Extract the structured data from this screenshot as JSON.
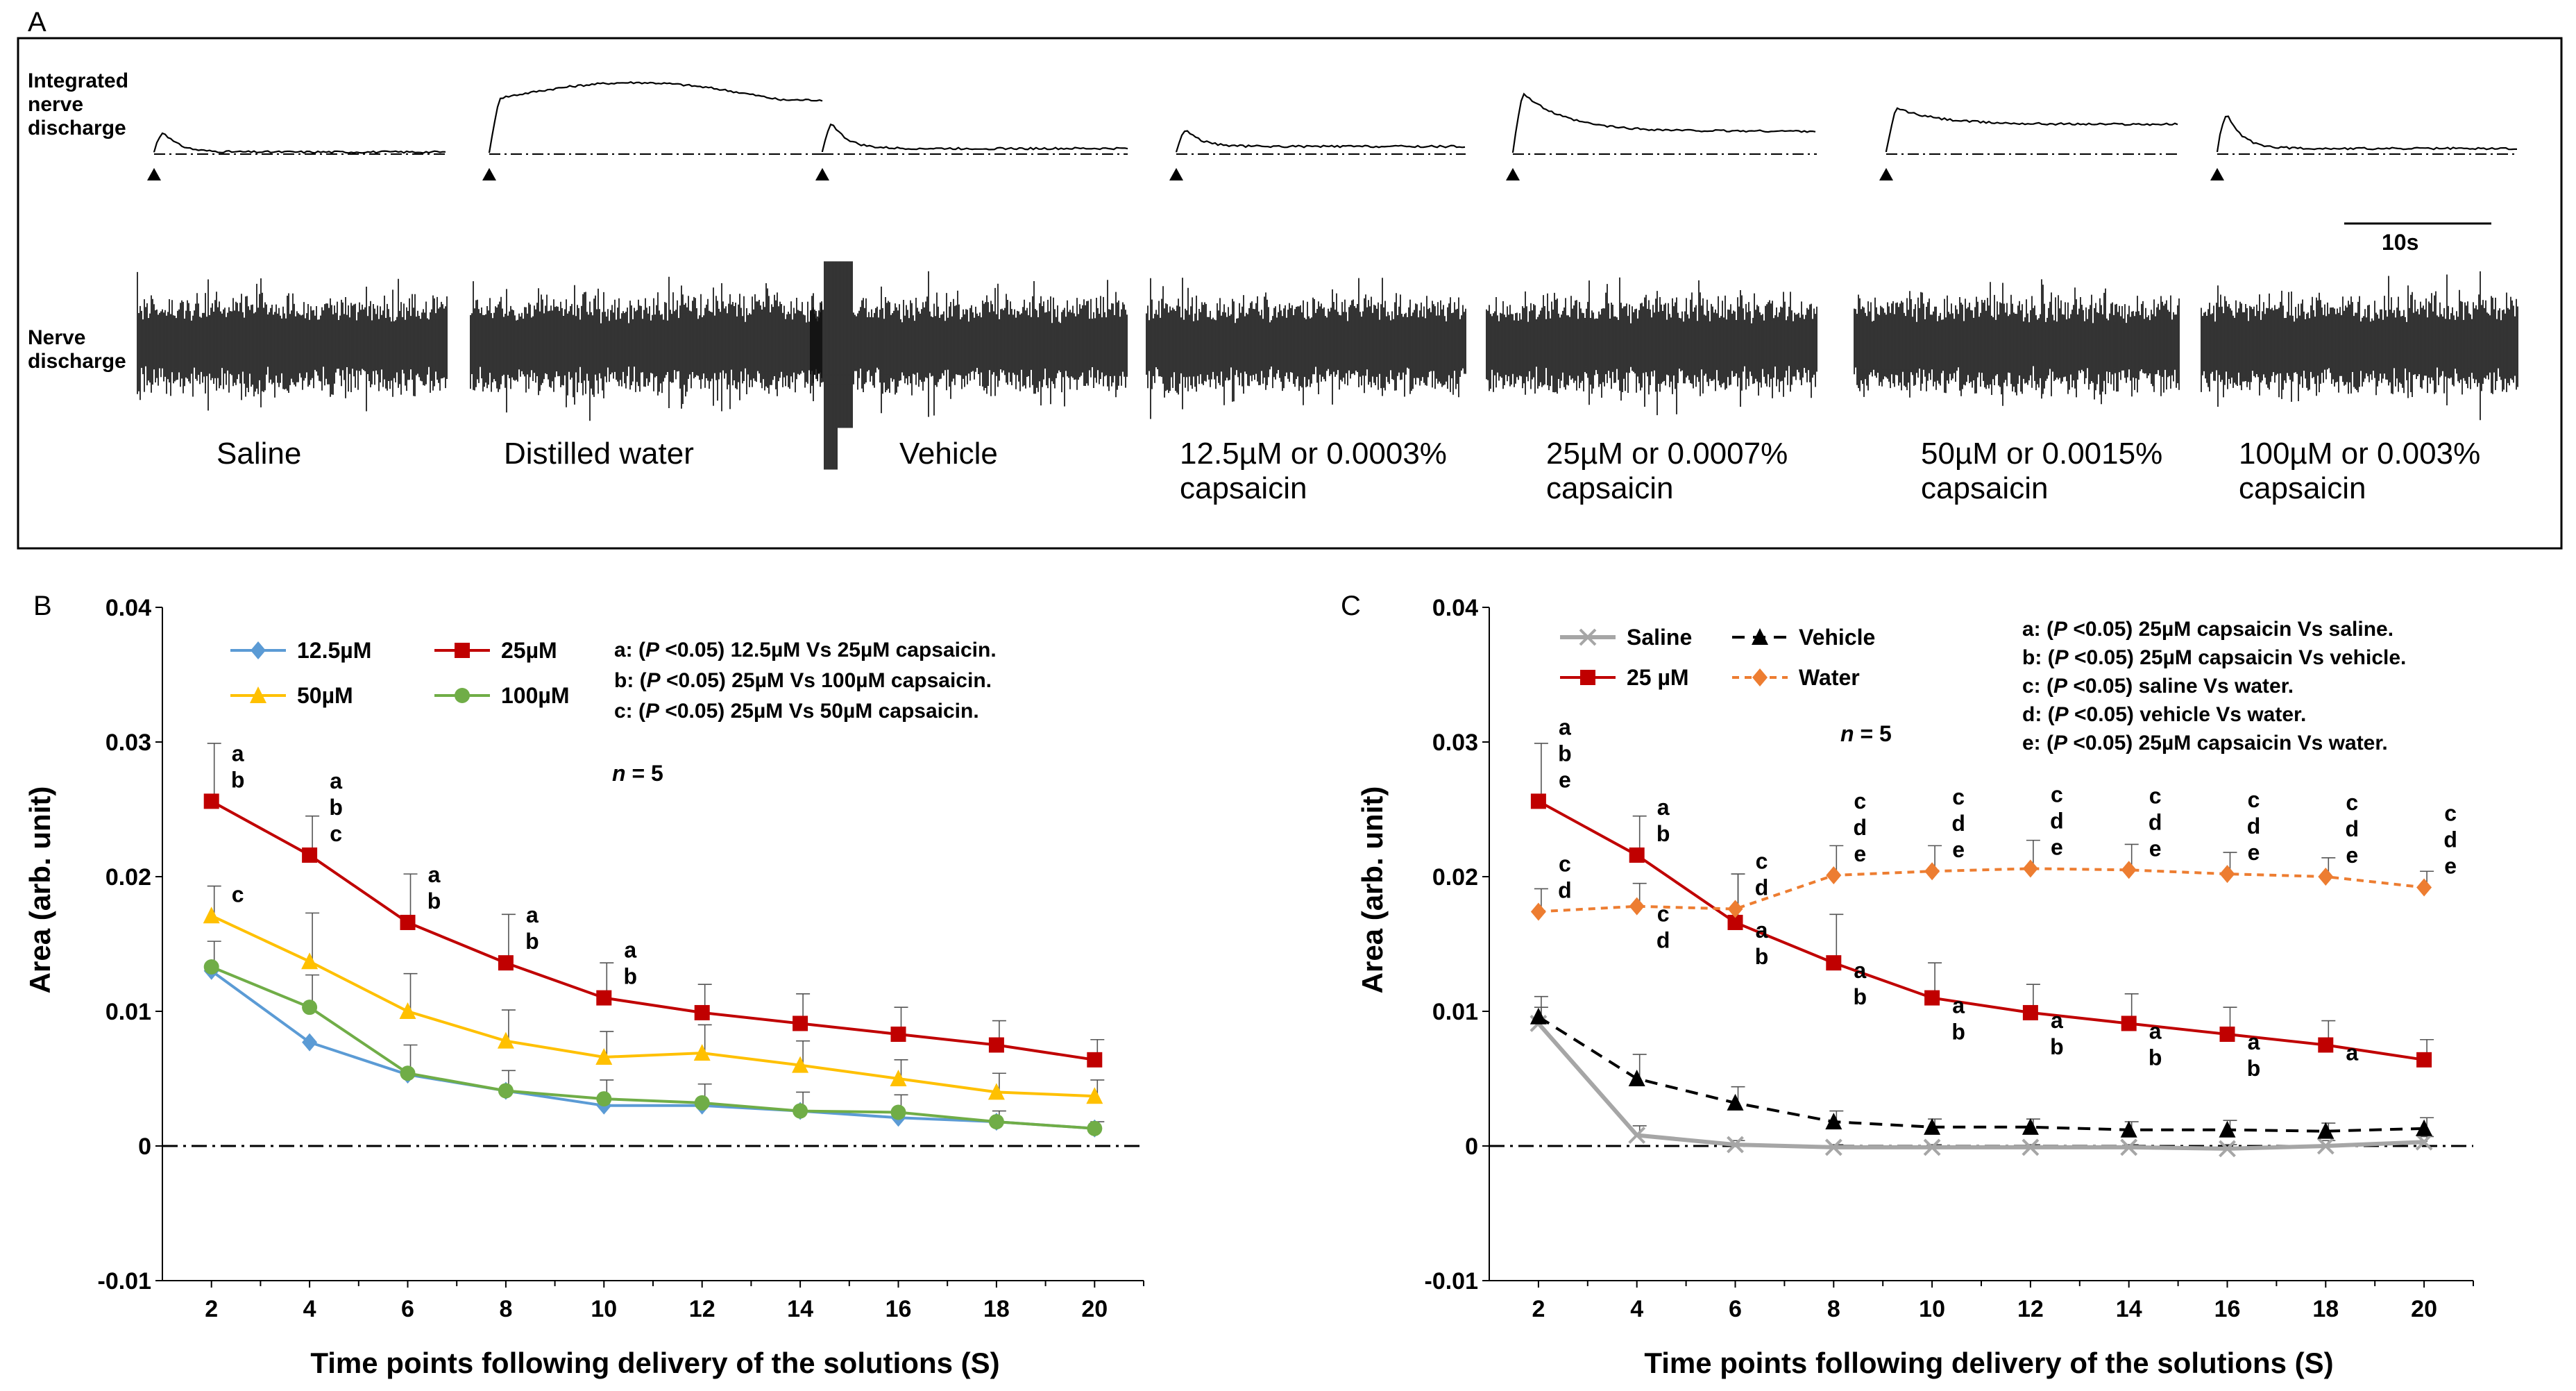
{
  "panel_a": {
    "letter": "A",
    "row_labels": {
      "integrated": [
        "Integrated",
        "nerve",
        "discharge"
      ],
      "raw": [
        "Nerve",
        "discharge"
      ]
    },
    "scale_bar_label": "10s",
    "conditions": [
      {
        "line1": "Saline",
        "line2": ""
      },
      {
        "line1": "Distilled water",
        "line2": ""
      },
      {
        "line1": "Vehicle",
        "line2": ""
      },
      {
        "line1": "12.5µM or 0.0003%",
        "line2": "capsaicin"
      },
      {
        "line1": "25µM or 0.0007%",
        "line2": "capsaicin"
      },
      {
        "line1": "50µM or 0.0015%",
        "line2": "capsaicin"
      },
      {
        "line1": "100µM or 0.003%",
        "line2": "capsaicin"
      }
    ],
    "integrated_profiles": [
      {
        "peak": 0.55,
        "plateau": 0.0,
        "sustained": false
      },
      {
        "peak": 0.9,
        "plateau": 0.95,
        "sustained": true
      },
      {
        "peak": 0.75,
        "plateau": 0.05,
        "sustained": false
      },
      {
        "peak": 0.55,
        "plateau": 0.08,
        "sustained": false
      },
      {
        "peak": 1.0,
        "plateau": 0.3,
        "sustained": true
      },
      {
        "peak": 0.7,
        "plateau": 0.4,
        "sustained": true
      },
      {
        "peak": 1.0,
        "plateau": 0.05,
        "sustained": false
      }
    ]
  },
  "chart_data": [
    {
      "panel_letter": "B",
      "type": "line",
      "xlabel": "Time points following delivery of the solutions (S)",
      "ylabel": "Area (arb. unit)",
      "x": [
        2,
        4,
        6,
        8,
        10,
        12,
        14,
        16,
        18,
        20
      ],
      "xlim": [
        1,
        21
      ],
      "ylim": [
        -0.01,
        0.04
      ],
      "yticks": [
        "-0.01",
        "0",
        "0.01",
        "0.02",
        "0.03",
        "0.04"
      ],
      "xticks": [
        "2",
        "4",
        "6",
        "8",
        "10",
        "12",
        "14",
        "16",
        "18",
        "20"
      ],
      "n_label": "n",
      "n_value": " = 5",
      "series": [
        {
          "name": "12.5µM",
          "color": "#5b9bd5",
          "marker": "diamond",
          "dash": "",
          "values": [
            0.013,
            0.0077,
            0.0053,
            0.0041,
            0.003,
            0.003,
            0.0026,
            0.0021,
            0.0018,
            0.0013
          ],
          "errors": [
            0,
            0,
            0,
            0,
            0,
            0,
            0,
            0,
            0,
            0
          ]
        },
        {
          "name": "25µM",
          "color": "#c00000",
          "marker": "square",
          "dash": "",
          "values": [
            0.0256,
            0.0216,
            0.0166,
            0.0136,
            0.011,
            0.0099,
            0.0091,
            0.0083,
            0.0075,
            0.0064
          ],
          "errors": [
            0.0043,
            0.0029,
            0.0036,
            0.0036,
            0.0026,
            0.0021,
            0.0022,
            0.002,
            0.0018,
            0.0015
          ]
        },
        {
          "name": "50µM",
          "color": "#ffc000",
          "marker": "triangle",
          "dash": "",
          "values": [
            0.0171,
            0.0137,
            0.01,
            0.0078,
            0.0066,
            0.0069,
            0.006,
            0.005,
            0.004,
            0.0037
          ],
          "errors": [
            0.0022,
            0.0036,
            0.0028,
            0.0023,
            0.0019,
            0.0021,
            0.0018,
            0.0014,
            0.0014,
            0.0012
          ]
        },
        {
          "name": "100µM",
          "color": "#70ad47",
          "marker": "circle",
          "dash": "",
          "values": [
            0.0133,
            0.0103,
            0.0054,
            0.0041,
            0.0035,
            0.0032,
            0.0026,
            0.0025,
            0.0018,
            0.0013
          ],
          "errors": [
            0.0019,
            0.0024,
            0.0021,
            0.0015,
            0.0014,
            0.0014,
            0.0014,
            0.0013,
            0.0008,
            0.0005
          ]
        }
      ],
      "legend_rows": [
        [
          "12.5µM",
          "25µM"
        ],
        [
          "50µM",
          "100µM"
        ]
      ],
      "notes": [
        {
          "label": "a: (",
          "p": "P",
          "rest": " <0.05) 12.5µM Vs 25µM capsaicin."
        },
        {
          "label": "b: (",
          "p": "P",
          "rest": " <0.05) 25µM Vs 100µM capsaicin."
        },
        {
          "label": "c: (",
          "p": "P",
          "rest": " <0.05) 25µM Vs 50µM capsaicin."
        }
      ],
      "annotations": [
        {
          "x": 2,
          "y": 0.0256,
          "anchor": "above",
          "letters": [
            "a",
            "b"
          ]
        },
        {
          "x": 4,
          "y": 0.0216,
          "anchor": "above",
          "letters": [
            "a",
            "b",
            "c"
          ]
        },
        {
          "x": 6,
          "y": 0.0166,
          "anchor": "above",
          "letters": [
            "a",
            "b"
          ]
        },
        {
          "x": 8,
          "y": 0.0136,
          "anchor": "above",
          "letters": [
            "a",
            "b"
          ]
        },
        {
          "x": 10,
          "y": 0.011,
          "anchor": "above",
          "letters": [
            "a",
            "b"
          ]
        },
        {
          "x": 2,
          "y": 0.0171,
          "anchor": "above",
          "letters": [
            "c"
          ]
        }
      ]
    },
    {
      "panel_letter": "C",
      "type": "line",
      "xlabel": "Time points following delivery of the solutions (S)",
      "ylabel": "Area (arb. unit)",
      "x": [
        2,
        4,
        6,
        8,
        10,
        12,
        14,
        16,
        18,
        20
      ],
      "xlim": [
        1,
        21
      ],
      "ylim": [
        -0.01,
        0.04
      ],
      "yticks": [
        "-0.01",
        "0",
        "0.01",
        "0.02",
        "0.03",
        "0.04"
      ],
      "xticks": [
        "2",
        "4",
        "6",
        "8",
        "10",
        "12",
        "14",
        "16",
        "18",
        "20"
      ],
      "n_label": "n",
      "n_value": " = 5",
      "series": [
        {
          "name": "Saline",
          "color": "#a6a6a6",
          "marker": "x",
          "dash": "",
          "values": [
            0.0091,
            0.0008,
            0.0001,
            -0.0001,
            -0.0001,
            -0.0001,
            -0.0001,
            -0.0002,
            0.0,
            0.0003
          ],
          "errors": [
            0.0012,
            0.0007,
            0.0003,
            0.0002,
            0.0002,
            0.0002,
            0.0002,
            0.0003,
            0.0004,
            0.0004
          ]
        },
        {
          "name": "Vehicle",
          "color": "#000000",
          "marker": "triangle",
          "dash": "18,12",
          "values": [
            0.0096,
            0.005,
            0.0032,
            0.0018,
            0.0014,
            0.0014,
            0.0012,
            0.0012,
            0.0011,
            0.0013
          ],
          "errors": [
            0.0015,
            0.0018,
            0.0012,
            0.0008,
            0.0006,
            0.0006,
            0.0006,
            0.0007,
            0.0006,
            0.0008
          ]
        },
        {
          "name": "25 µM",
          "color": "#c00000",
          "marker": "square",
          "dash": "",
          "values": [
            0.0256,
            0.0216,
            0.0166,
            0.0136,
            0.011,
            0.0099,
            0.0091,
            0.0083,
            0.0075,
            0.0064
          ],
          "errors": [
            0.0043,
            0.0029,
            0.0036,
            0.0036,
            0.0026,
            0.0021,
            0.0022,
            0.002,
            0.0018,
            0.0015
          ]
        },
        {
          "name": "Water",
          "color": "#ed7d31",
          "marker": "diamond",
          "dash": "10,8",
          "values": [
            0.0174,
            0.0178,
            0.0176,
            0.0201,
            0.0204,
            0.0206,
            0.0205,
            0.0202,
            0.02,
            0.0192
          ],
          "errors": [
            0.0017,
            0.0017,
            0.0026,
            0.0022,
            0.0019,
            0.0021,
            0.0019,
            0.0016,
            0.0014,
            0.0012
          ]
        }
      ],
      "legend_rows": [
        [
          "Saline",
          "Vehicle"
        ],
        [
          "25 µM",
          "Water"
        ]
      ],
      "notes": [
        {
          "label": "a: (",
          "p": "P",
          "rest": " <0.05) 25µM capsaicin Vs saline."
        },
        {
          "label": "b: (",
          "p": "P",
          "rest": " <0.05) 25µM capsaicin Vs vehicle."
        },
        {
          "label": "c: (",
          "p": "P",
          "rest": " <0.05) saline Vs water."
        },
        {
          "label": "d: (",
          "p": "P",
          "rest": " <0.05) vehicle Vs water."
        },
        {
          "label": "e: (",
          "p": "P",
          "rest": " <0.05) 25µM capsaicin Vs water."
        }
      ],
      "annotations": [
        {
          "x": 2,
          "y": 0.0256,
          "anchor": "above",
          "letters": [
            "a",
            "b",
            "e"
          ]
        },
        {
          "x": 4,
          "y": 0.0216,
          "anchor": "above",
          "letters": [
            "a",
            "b"
          ]
        },
        {
          "x": 6,
          "y": 0.0176,
          "anchor": "above",
          "letters": [
            "c",
            "d"
          ]
        },
        {
          "x": 8,
          "y": 0.0201,
          "anchor": "above",
          "letters": [
            "c",
            "d",
            "e"
          ]
        },
        {
          "x": 10,
          "y": 0.0204,
          "anchor": "above",
          "letters": [
            "c",
            "d",
            "e"
          ]
        },
        {
          "x": 12,
          "y": 0.0206,
          "anchor": "above",
          "letters": [
            "c",
            "d",
            "e"
          ]
        },
        {
          "x": 14,
          "y": 0.0205,
          "anchor": "above",
          "letters": [
            "c",
            "d",
            "e"
          ]
        },
        {
          "x": 16,
          "y": 0.0202,
          "anchor": "above",
          "letters": [
            "c",
            "d",
            "e"
          ]
        },
        {
          "x": 18,
          "y": 0.02,
          "anchor": "above",
          "letters": [
            "c",
            "d",
            "e"
          ]
        },
        {
          "x": 20,
          "y": 0.0192,
          "anchor": "above",
          "letters": [
            "c",
            "d",
            "e"
          ]
        },
        {
          "x": 2,
          "y": 0.0174,
          "anchor": "above",
          "letters": [
            "c",
            "d"
          ]
        },
        {
          "x": 4,
          "y": 0.0178,
          "anchor": "below",
          "letters": [
            "c",
            "d"
          ]
        },
        {
          "x": 6,
          "y": 0.0166,
          "anchor": "below",
          "letters": [
            "a",
            "b"
          ]
        },
        {
          "x": 8,
          "y": 0.0136,
          "anchor": "below",
          "letters": [
            "a",
            "b"
          ]
        },
        {
          "x": 10,
          "y": 0.011,
          "anchor": "below",
          "letters": [
            "a",
            "b"
          ]
        },
        {
          "x": 12,
          "y": 0.0099,
          "anchor": "below",
          "letters": [
            "a",
            "b"
          ]
        },
        {
          "x": 14,
          "y": 0.0091,
          "anchor": "below",
          "letters": [
            "a",
            "b"
          ]
        },
        {
          "x": 16,
          "y": 0.0083,
          "anchor": "below",
          "letters": [
            "a",
            "b"
          ]
        },
        {
          "x": 18,
          "y": 0.0075,
          "anchor": "below",
          "letters": [
            "a"
          ]
        }
      ]
    }
  ]
}
